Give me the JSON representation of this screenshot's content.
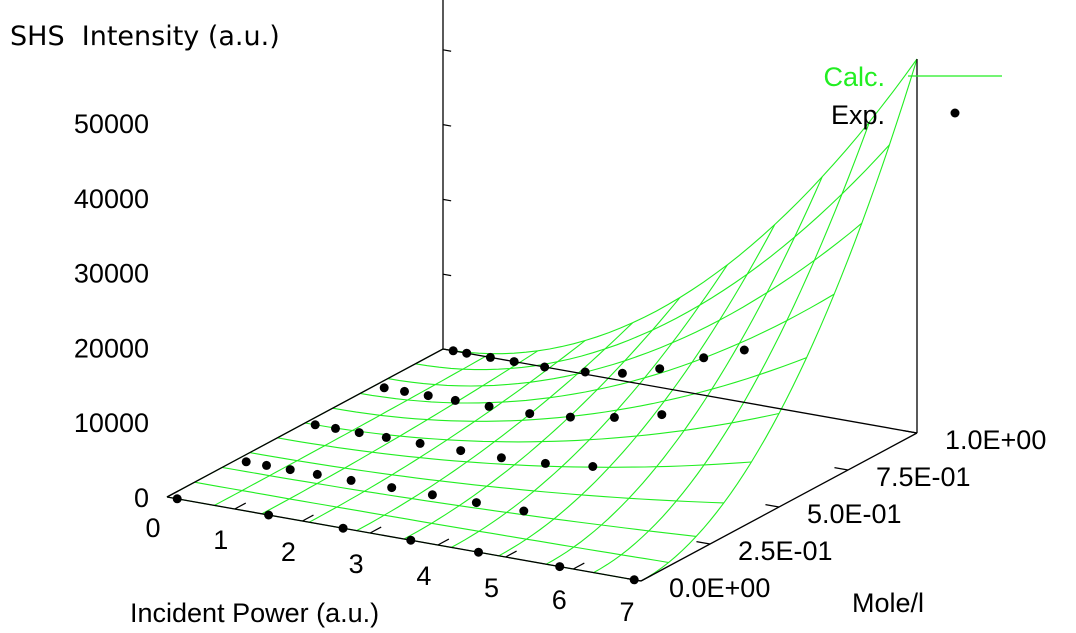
{
  "chart_data": {
    "type": "surface3d",
    "zlabel": "SHS  Intensity (a.u.)",
    "xlabel": "Incident Power (a.u.)",
    "ylabel": "Mole/l",
    "xlim": [
      0,
      7
    ],
    "ylim": [
      0,
      1
    ],
    "zlim": [
      0,
      50000
    ],
    "x_ticks": [
      "0",
      "1",
      "2",
      "3",
      "4",
      "5",
      "6",
      "7"
    ],
    "y_ticks": [
      "0.0E+00",
      "2.5E-01",
      "5.0E-01",
      "7.5E-01",
      "1.0E+00"
    ],
    "z_ticks": [
      "0",
      "10000",
      "20000",
      "30000",
      "40000",
      "50000"
    ],
    "series": [
      {
        "name": "Calc.",
        "kind": "surface",
        "color": "#22ee22",
        "formula": "z = 50000 * (x/7)^2 * y^2"
      },
      {
        "name": "Exp.",
        "kind": "points",
        "color": "#000000",
        "points": [
          {
            "x": 0.15,
            "y": 0.0,
            "z": 0
          },
          {
            "x": 1.5,
            "y": 0.0,
            "z": 0
          },
          {
            "x": 2.6,
            "y": 0.0,
            "z": 0
          },
          {
            "x": 3.6,
            "y": 0.0,
            "z": 0
          },
          {
            "x": 4.6,
            "y": 0.0,
            "z": 0
          },
          {
            "x": 5.8,
            "y": 0.0,
            "z": 0
          },
          {
            "x": 6.9,
            "y": 0.0,
            "z": 0
          },
          {
            "x": 0.15,
            "y": 0.25,
            "z": 0
          },
          {
            "x": 0.45,
            "y": 0.25,
            "z": 0
          },
          {
            "x": 0.8,
            "y": 0.25,
            "z": 0
          },
          {
            "x": 1.2,
            "y": 0.25,
            "z": 0
          },
          {
            "x": 1.7,
            "y": 0.25,
            "z": 0
          },
          {
            "x": 2.3,
            "y": 0.25,
            "z": 0
          },
          {
            "x": 2.9,
            "y": 0.25,
            "z": 0
          },
          {
            "x": 3.55,
            "y": 0.25,
            "z": 0
          },
          {
            "x": 4.25,
            "y": 0.25,
            "z": 0
          },
          {
            "x": 0.15,
            "y": 0.5,
            "z": 0
          },
          {
            "x": 0.45,
            "y": 0.5,
            "z": 0
          },
          {
            "x": 0.8,
            "y": 0.5,
            "z": 0
          },
          {
            "x": 1.2,
            "y": 0.5,
            "z": 0
          },
          {
            "x": 1.7,
            "y": 0.5,
            "z": 0
          },
          {
            "x": 2.3,
            "y": 0.5,
            "z": 0
          },
          {
            "x": 2.9,
            "y": 0.5,
            "z": 0
          },
          {
            "x": 3.55,
            "y": 0.5,
            "z": 300
          },
          {
            "x": 4.25,
            "y": 0.5,
            "z": 1000
          },
          {
            "x": 0.15,
            "y": 0.75,
            "z": 0
          },
          {
            "x": 0.45,
            "y": 0.75,
            "z": 0
          },
          {
            "x": 0.8,
            "y": 0.75,
            "z": 0
          },
          {
            "x": 1.2,
            "y": 0.75,
            "z": 0
          },
          {
            "x": 1.7,
            "y": 0.75,
            "z": 0
          },
          {
            "x": 2.3,
            "y": 0.75,
            "z": 0
          },
          {
            "x": 2.9,
            "y": 0.75,
            "z": 500
          },
          {
            "x": 3.55,
            "y": 0.75,
            "z": 1500
          },
          {
            "x": 4.25,
            "y": 0.75,
            "z": 3000
          },
          {
            "x": 0.15,
            "y": 1.0,
            "z": 0
          },
          {
            "x": 0.35,
            "y": 1.0,
            "z": 0
          },
          {
            "x": 0.7,
            "y": 1.0,
            "z": 0
          },
          {
            "x": 1.05,
            "y": 1.0,
            "z": 0
          },
          {
            "x": 1.5,
            "y": 1.0,
            "z": 0
          },
          {
            "x": 2.1,
            "y": 1.0,
            "z": 300
          },
          {
            "x": 2.65,
            "y": 1.0,
            "z": 1000
          },
          {
            "x": 3.2,
            "y": 1.0,
            "z": 2500
          },
          {
            "x": 3.85,
            "y": 1.0,
            "z": 5000
          },
          {
            "x": 4.45,
            "y": 1.0,
            "z": 7000
          }
        ]
      }
    ],
    "legend": {
      "position": "top-right",
      "entries": [
        "Calc.",
        "Exp."
      ]
    }
  }
}
